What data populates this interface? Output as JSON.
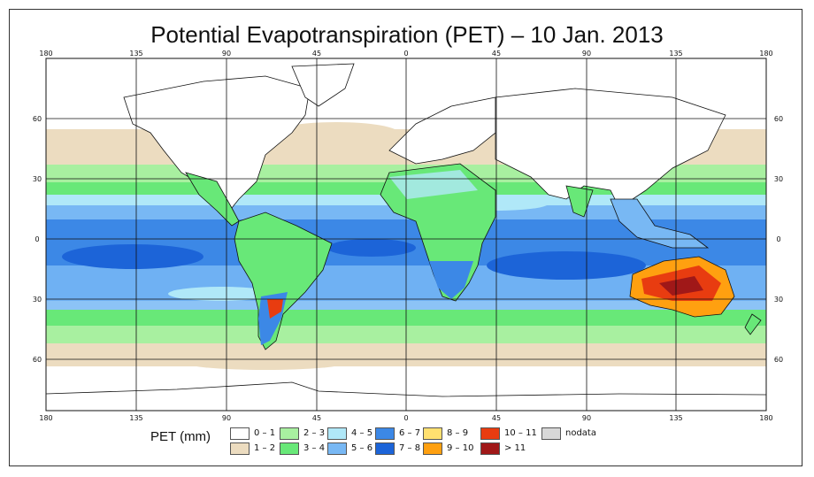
{
  "title": "Potential Evapotranspiration (PET) – 10 Jan. 2013",
  "map": {
    "lon_ticks": [
      "180",
      "135",
      "90",
      "45",
      "0",
      "45",
      "90",
      "135",
      "180"
    ],
    "lat_ticks": [
      "60",
      "30",
      "0",
      "30",
      "60"
    ],
    "colors": {
      "c01": "#ffffff",
      "c12": "#ecdcc0",
      "c23": "#a8f0a0",
      "c34": "#68e878",
      "c45": "#b0e8f8",
      "c56": "#78b8f4",
      "c67": "#3c88e6",
      "c78": "#1c64d8",
      "c89": "#ffe070",
      "c910": "#ffa010",
      "c1011": "#e83c10",
      "c11": "#a01818",
      "land": "#ffffff",
      "nodata": "#d8d8d8"
    }
  },
  "legend": {
    "title": "PET (mm)",
    "items": [
      {
        "label": "0 – 1",
        "color": "#ffffff"
      },
      {
        "label": "1 – 2",
        "color": "#ecdcc0"
      },
      {
        "label": "2 – 3",
        "color": "#a8f0a0"
      },
      {
        "label": "3 – 4",
        "color": "#68e878"
      },
      {
        "label": "4 – 5",
        "color": "#b0e8f8"
      },
      {
        "label": "5 – 6",
        "color": "#78b8f4"
      },
      {
        "label": "6 – 7",
        "color": "#3c88e6"
      },
      {
        "label": "7 – 8",
        "color": "#1c64d8"
      },
      {
        "label": "8 – 9",
        "color": "#ffe070"
      },
      {
        "label": "9 – 10",
        "color": "#ffa010"
      },
      {
        "label": "10 – 11",
        "color": "#e83c10"
      },
      {
        "label": "> 11",
        "color": "#a01818"
      },
      {
        "label": "nodata",
        "color": "#d8d8d8"
      }
    ]
  }
}
